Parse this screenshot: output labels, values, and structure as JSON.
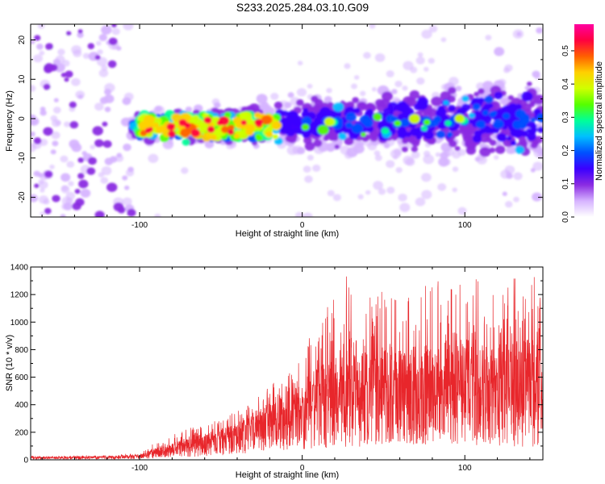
{
  "figure": {
    "title": "S233.2025.284.03.10.G09"
  },
  "chart_data": [
    {
      "type": "heatmap",
      "xlabel": "Height of straight line (km)",
      "ylabel": "Frequency (Hz)",
      "xlim": [
        -167,
        148
      ],
      "ylim": [
        -25,
        24
      ],
      "x_ticks": [
        -100,
        0,
        100
      ],
      "y_ticks": [
        -20,
        -10,
        0,
        10,
        20
      ],
      "colorbar": {
        "label": "Normalized spectral amplitude",
        "range": [
          0.0,
          0.58
        ],
        "ticks": [
          0.0,
          0.1,
          0.2,
          0.3,
          0.4,
          0.5
        ],
        "colors": [
          "#ffffff",
          "#d6b4ff",
          "#8a2be2",
          "#3b00ff",
          "#0050ff",
          "#00bfff",
          "#00ff99",
          "#55ff00",
          "#d0ff00",
          "#ffd000",
          "#ff6000",
          "#ff0040",
          "#ff00a0"
        ]
      },
      "features": [
        {
          "name": "low-altitude noise",
          "x_range": [
            -167,
            -105
          ],
          "freq_range": [
            -25,
            24
          ],
          "amplitude": 0.05
        },
        {
          "name": "main signal band",
          "x_range": [
            -105,
            148
          ],
          "center_freq": [
            -2,
            0
          ],
          "spread_hz_start": 4,
          "spread_hz_end": 12,
          "peak_amplitude": 0.55
        },
        {
          "name": "peak signal region",
          "x_range": [
            -100,
            -15
          ],
          "center_freq": -2,
          "peak_amplitude": 0.55
        }
      ]
    },
    {
      "type": "line",
      "xlabel": "Height of straight line (km)",
      "ylabel": "SNR (10 * v/v)",
      "xlim": [
        -167,
        148
      ],
      "ylim": [
        0,
        1400
      ],
      "x_ticks": [
        -100,
        0,
        100
      ],
      "y_ticks": [
        0,
        200,
        400,
        600,
        800,
        1000,
        1200,
        1400
      ],
      "color": "#e8262b",
      "envelope": {
        "x": [
          -167,
          -120,
          -100,
          -90,
          -70,
          -50,
          -30,
          -15,
          0,
          10,
          20,
          30,
          40,
          60,
          80,
          100,
          120,
          140,
          148
        ],
        "mean": [
          15,
          18,
          25,
          60,
          100,
          160,
          250,
          330,
          380,
          420,
          450,
          470,
          480,
          490,
          500,
          500,
          480,
          460,
          460
        ],
        "max": [
          30,
          35,
          50,
          130,
          230,
          300,
          420,
          600,
          800,
          1000,
          1200,
          1400,
          1250,
          1200,
          1300,
          1350,
          1280,
          1400,
          1300
        ]
      }
    }
  ]
}
